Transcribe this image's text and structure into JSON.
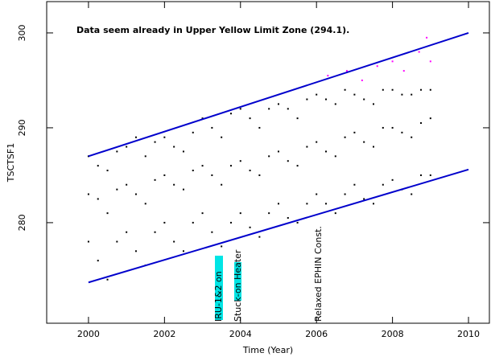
{
  "chart_data": {
    "type": "scatter",
    "annotation": "Data seem already in Upper Yellow  Limit Zone (294.1).",
    "annotation_color": "#ff00ff",
    "event_labels": [
      "IRU-1&2 on",
      "Stuck-on Heater",
      "Relaxed EPHIN Const."
    ],
    "x_label": "Time (Year)",
    "y_label": "TSCTSF1",
    "xlim": [
      1998.9,
      2010.55
    ],
    "ylim": [
      269.4,
      303.3
    ],
    "xticks": [
      2000,
      2002,
      2004,
      2006,
      2008,
      2010
    ],
    "yticks": [
      280,
      290,
      300
    ],
    "series": [
      {
        "color": "#000000",
        "type": "scatter",
        "x": [
          2000,
          2000,
          2000,
          2000.25,
          2000.25,
          2000.25,
          2000.5,
          2000.5,
          2000.5,
          2000.75,
          2000.75,
          2000.75,
          2001,
          2001,
          2001,
          2001.25,
          2001.25,
          2001.25,
          2001.5,
          2001.5,
          2001.5,
          2001.75,
          2001.75,
          2001.75,
          2002,
          2002,
          2002,
          2002.25,
          2002.25,
          2002.25,
          2002.5,
          2002.5,
          2002.5,
          2002.75,
          2002.75,
          2002.75,
          2003,
          2003,
          2003,
          2003.25,
          2003.25,
          2003.25,
          2003.5,
          2003.5,
          2003.5,
          2003.75,
          2003.75,
          2003.75,
          2004,
          2004,
          2004,
          2004.25,
          2004.25,
          2004.25,
          2004.5,
          2004.5,
          2004.5,
          2004.75,
          2004.75,
          2004.75,
          2005,
          2005,
          2005,
          2005.25,
          2005.25,
          2005.25,
          2005.5,
          2005.5,
          2005.5,
          2005.75,
          2005.75,
          2005.75,
          2006,
          2006,
          2006,
          2006.25,
          2006.25,
          2006.25,
          2006.5,
          2006.5,
          2006.5,
          2006.75,
          2006.75,
          2006.75,
          2007,
          2007,
          2007,
          2007.25,
          2007.25,
          2007.25,
          2007.5,
          2007.5,
          2007.5,
          2007.75,
          2007.75,
          2007.75,
          2008,
          2008,
          2008,
          2008.25,
          2008.25,
          2008.25,
          2008.5,
          2008.5,
          2008.5,
          2008.75,
          2008.75,
          2008.75,
          2009,
          2009,
          2009
        ],
        "values": [
          278,
          283,
          287,
          276,
          282.5,
          286,
          274,
          281,
          285.5,
          278,
          283.5,
          287.5,
          279,
          284,
          288,
          277,
          283,
          289,
          275.5,
          282,
          287,
          279,
          284.5,
          288.5,
          280,
          285,
          289,
          278,
          284,
          288,
          277,
          283.5,
          287.5,
          280,
          285.5,
          289.5,
          281,
          286,
          291,
          279,
          285,
          290,
          277.5,
          284,
          289,
          280,
          286,
          291.5,
          281,
          286.5,
          292,
          279.5,
          285.5,
          291,
          278.5,
          285,
          290,
          281,
          287,
          292,
          282,
          287.5,
          292.5,
          280.5,
          286.5,
          292,
          280,
          286,
          291,
          282,
          288,
          293,
          283,
          288.5,
          293.5,
          282,
          287.5,
          293,
          281,
          287,
          292.5,
          283,
          289,
          294,
          284,
          289.5,
          293.5,
          282.5,
          288.5,
          293,
          282,
          288,
          292.5,
          284,
          290,
          294,
          284.5,
          290,
          294,
          283.5,
          289.5,
          293.5,
          283,
          289,
          293.5,
          285,
          290.5,
          294,
          285,
          291,
          294
        ]
      },
      {
        "color": "#ff00ff",
        "type": "scatter",
        "x": [
          2006.3,
          2006.8,
          2007.2,
          2007.6,
          2008.0,
          2008.3,
          2008.7,
          2008.9,
          2009.0
        ],
        "values": [
          295.5,
          296,
          295,
          296.5,
          297,
          296,
          298,
          299.5,
          297
        ]
      },
      {
        "color": "#0000cc",
        "type": "line",
        "x": [
          2000,
          2010
        ],
        "values": [
          287.0,
          300.0
        ]
      },
      {
        "color": "#0000cc",
        "type": "line",
        "x": [
          2000,
          2010
        ],
        "values": [
          273.7,
          285.6
        ]
      }
    ]
  }
}
